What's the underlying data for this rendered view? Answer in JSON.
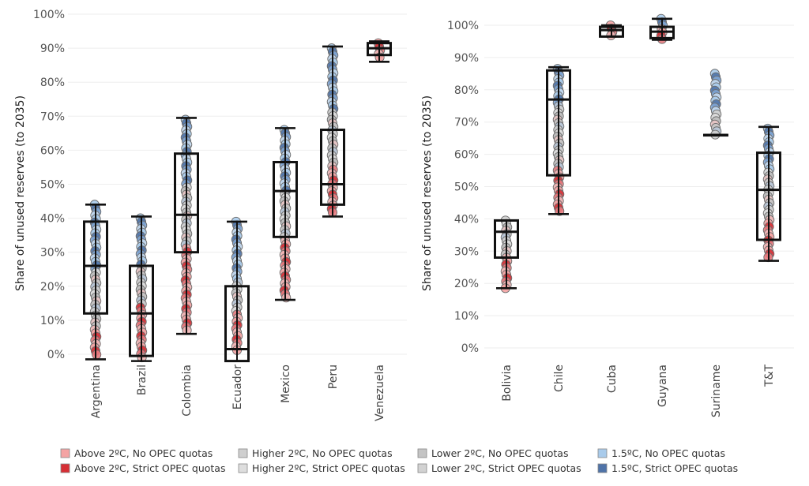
{
  "chart_data": [
    {
      "type": "box",
      "ylabel": "Share of unused reserves (to 2035)",
      "yticks": [
        "0%",
        "10%",
        "20%",
        "30%",
        "40%",
        "50%",
        "60%",
        "70%",
        "80%",
        "90%",
        "100%"
      ],
      "ylim": [
        -3,
        102
      ],
      "boxes": [
        {
          "label": "Argentina",
          "min": -1.5,
          "q1": 12,
          "median": 26,
          "q3": 39,
          "max": 44,
          "scatter": {
            "min": -1,
            "max": 44,
            "bands": [
              [
                -1,
                8,
                "a"
              ],
              [
                8,
                25,
                "c"
              ],
              [
                25,
                44,
                "b"
              ]
            ]
          }
        },
        {
          "label": "Brazil",
          "min": -2,
          "q1": -0.5,
          "median": 12,
          "q3": 26,
          "max": 40.5,
          "scatter": {
            "min": -1,
            "max": 40,
            "bands": [
              [
                -1,
                14,
                "a"
              ],
              [
                14,
                26,
                "c"
              ],
              [
                26,
                40,
                "b"
              ]
            ]
          }
        },
        {
          "label": "Colombia",
          "min": 6,
          "q1": 30,
          "median": 41,
          "q3": 59,
          "max": 69.5,
          "scatter": {
            "min": 6.5,
            "max": 69,
            "bands": [
              [
                6.5,
                32,
                "a"
              ],
              [
                32,
                50,
                "c"
              ],
              [
                50,
                69,
                "b"
              ]
            ]
          }
        },
        {
          "label": "Ecuador",
          "min": -2,
          "q1": -2,
          "median": 1.5,
          "q3": 20,
          "max": 39,
          "scatter": {
            "min": 1,
            "max": 39,
            "bands": [
              [
                1,
                12,
                "a"
              ],
              [
                12,
                22,
                "c"
              ],
              [
                22,
                39,
                "b"
              ]
            ]
          }
        },
        {
          "label": "Mexico",
          "min": 16,
          "q1": 34.5,
          "median": 48,
          "q3": 56.5,
          "max": 66.5,
          "scatter": {
            "min": 16.5,
            "max": 66,
            "bands": [
              [
                16.5,
                34,
                "a"
              ],
              [
                34,
                48,
                "c"
              ],
              [
                48,
                66,
                "b"
              ]
            ]
          }
        },
        {
          "label": "Peru",
          "min": 40.5,
          "q1": 44,
          "median": 50,
          "q3": 66,
          "max": 90.5,
          "scatter": {
            "min": 41,
            "max": 90,
            "bands": [
              [
                41,
                55,
                "a"
              ],
              [
                55,
                72,
                "c"
              ],
              [
                72,
                90,
                "b"
              ]
            ]
          }
        },
        {
          "label": "Venezuela",
          "min": 86,
          "q1": 88,
          "median": 90,
          "q3": 91.5,
          "max": 92,
          "scatter": {
            "min": 86.5,
            "max": 91.5,
            "bands": [
              [
                86.5,
                91.5,
                "a"
              ]
            ]
          }
        }
      ]
    },
    {
      "type": "box",
      "ylabel": "Share of unused reserves (to 2035)",
      "yticks": [
        "0%",
        "10%",
        "20%",
        "30%",
        "40%",
        "50%",
        "60%",
        "70%",
        "80%",
        "90%",
        "100%"
      ],
      "ylim": [
        -3,
        103
      ],
      "boxes": [
        {
          "label": "Bolivia",
          "min": 18.5,
          "q1": 28,
          "median": 36,
          "q3": 39.5,
          "max": 39.5,
          "scatter": {
            "min": 18.5,
            "max": 39.5,
            "bands": [
              [
                18.5,
                28,
                "a"
              ],
              [
                28,
                39.5,
                "c"
              ]
            ]
          }
        },
        {
          "label": "Chile",
          "min": 41.5,
          "q1": 53.5,
          "median": 77,
          "q3": 86,
          "max": 87,
          "scatter": {
            "min": 41.5,
            "max": 86.5,
            "bands": [
              [
                41.5,
                55,
                "a"
              ],
              [
                55,
                75,
                "c"
              ],
              [
                75,
                86.5,
                "b"
              ]
            ]
          }
        },
        {
          "label": "Cuba",
          "min": 96.5,
          "q1": 96.5,
          "median": 98.5,
          "q3": 99.5,
          "max": 100,
          "scatter": {
            "min": 96,
            "max": 100,
            "bands": [
              [
                96,
                100,
                "a"
              ]
            ]
          }
        },
        {
          "label": "Guyana",
          "min": 95.5,
          "q1": 96,
          "median": 98,
          "q3": 99.5,
          "max": 102,
          "scatter": {
            "min": 95.5,
            "max": 102,
            "bands": [
              [
                95.5,
                99,
                "a"
              ],
              [
                99,
                102,
                "b"
              ]
            ]
          }
        },
        {
          "label": "Suriname",
          "min": 66,
          "q1": 66,
          "median": 66,
          "q3": 66,
          "max": 66,
          "scatter": {
            "min": 66,
            "max": 85,
            "bands": [
              [
                66,
                73,
                "c"
              ],
              [
                73,
                85,
                "b"
              ]
            ]
          }
        },
        {
          "label": "T&T",
          "min": 27,
          "q1": 33.5,
          "median": 49,
          "q3": 60.5,
          "max": 68.5,
          "scatter": {
            "min": 27.5,
            "max": 68,
            "bands": [
              [
                27.5,
                40,
                "a"
              ],
              [
                40,
                55,
                "c"
              ],
              [
                55,
                68,
                "b"
              ]
            ]
          }
        }
      ]
    }
  ],
  "legend": [
    {
      "label": "Above 2ºC, No OPEC quotas",
      "color": "#f4a3a3"
    },
    {
      "label": "Higher 2ºC, No OPEC quotas",
      "color": "#cfcfcf"
    },
    {
      "label": "Lower 2ºC, No OPEC quotas",
      "color": "#c4c4c4"
    },
    {
      "label": "1.5ºC, No OPEC quotas",
      "color": "#a9cbeb"
    },
    {
      "label": "Above 2ºC, Strict OPEC quotas",
      "color": "#d62f35"
    },
    {
      "label": "Higher 2ºC, Strict OPEC quotas",
      "color": "#dedede"
    },
    {
      "label": "Lower 2ºC, Strict OPEC quotas",
      "color": "#d2d2d2"
    },
    {
      "label": "1.5ºC, Strict OPEC quotas",
      "color": "#4f73a8"
    }
  ]
}
